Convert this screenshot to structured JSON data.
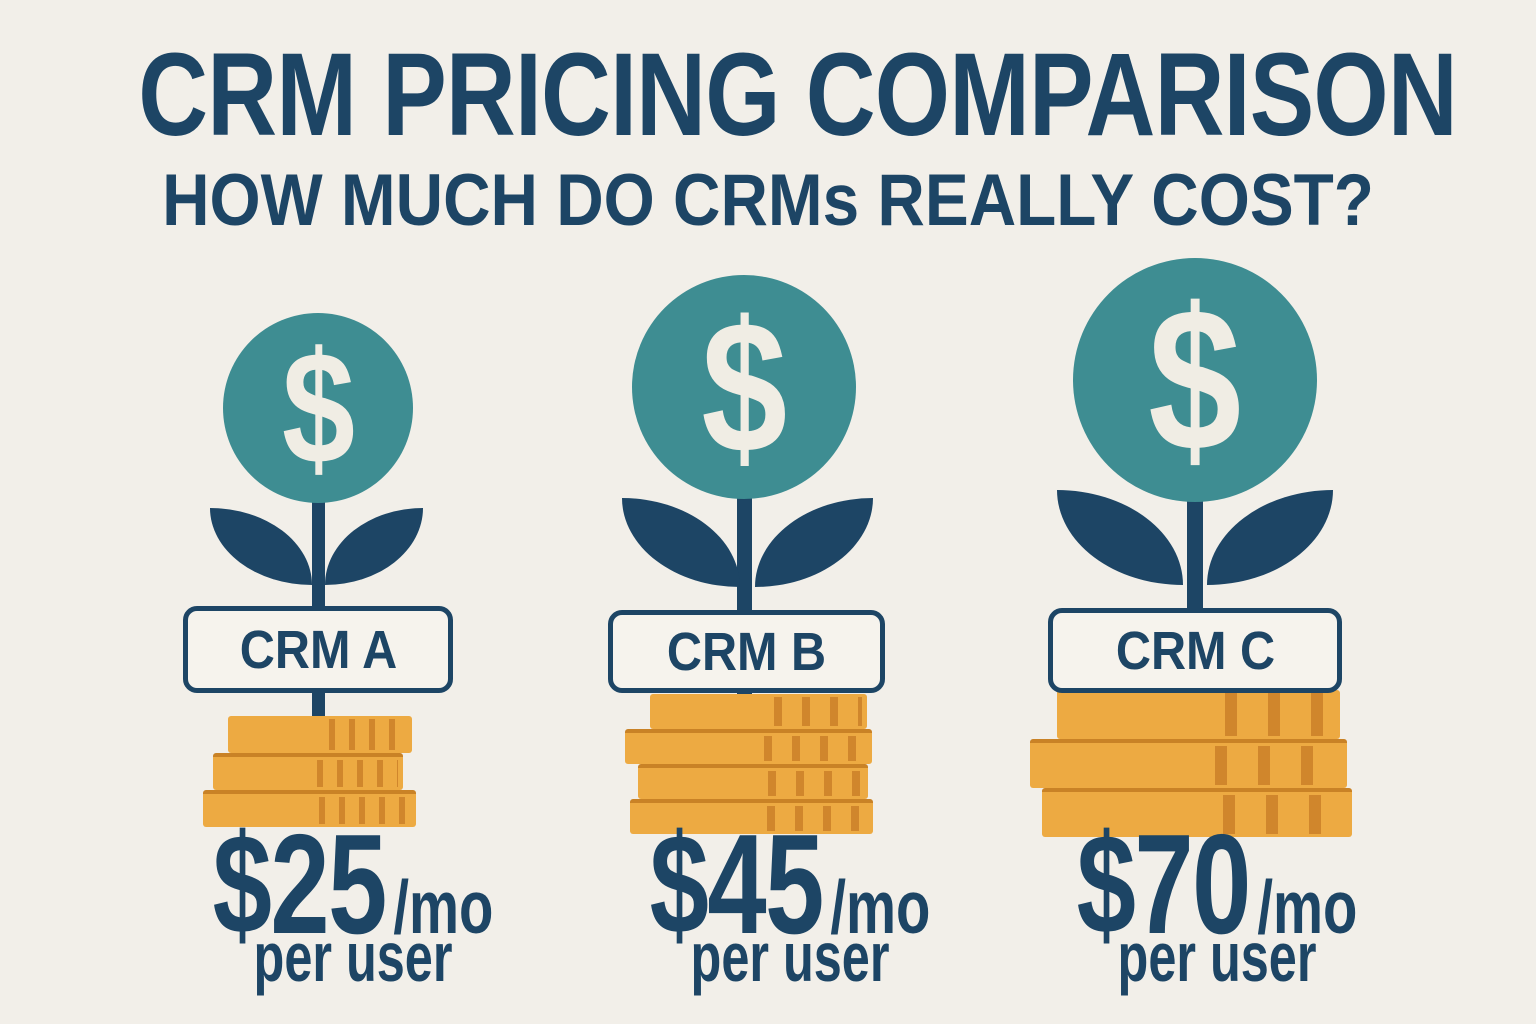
{
  "header": {
    "title": "CRM PRICING COMPARISON",
    "subtitle": "HOW MUCH DO CRMs REALLY COST?"
  },
  "columns": [
    {
      "label": "CRM A",
      "dollar": "$",
      "price": "$25",
      "period": "/mo",
      "unit": "per user",
      "coin_rows": 3
    },
    {
      "label": "CRM B",
      "dollar": "$",
      "price": "$45",
      "period": "/mo",
      "unit": "per user",
      "coin_rows": 4
    },
    {
      "label": "CRM C",
      "dollar": "$",
      "price": "$70",
      "period": "/mo",
      "unit": "per user",
      "coin_rows": 3
    }
  ],
  "colors": {
    "background": "#f2efe9",
    "navy": "#1d4565",
    "teal": "#3e8d92",
    "gold": "#edaa42",
    "gold_dark": "#d0862c",
    "cream": "#f0ede4"
  },
  "chart_data": {
    "type": "bar",
    "title": "CRM PRICING COMPARISON",
    "subtitle": "HOW MUCH DO CRMs REALLY COST?",
    "categories": [
      "CRM A",
      "CRM B",
      "CRM C"
    ],
    "values": [
      25,
      45,
      70
    ],
    "unit": "$/mo per user",
    "coin_stack_rows": [
      3,
      4,
      3
    ],
    "legend_position": "none",
    "grid": false
  }
}
